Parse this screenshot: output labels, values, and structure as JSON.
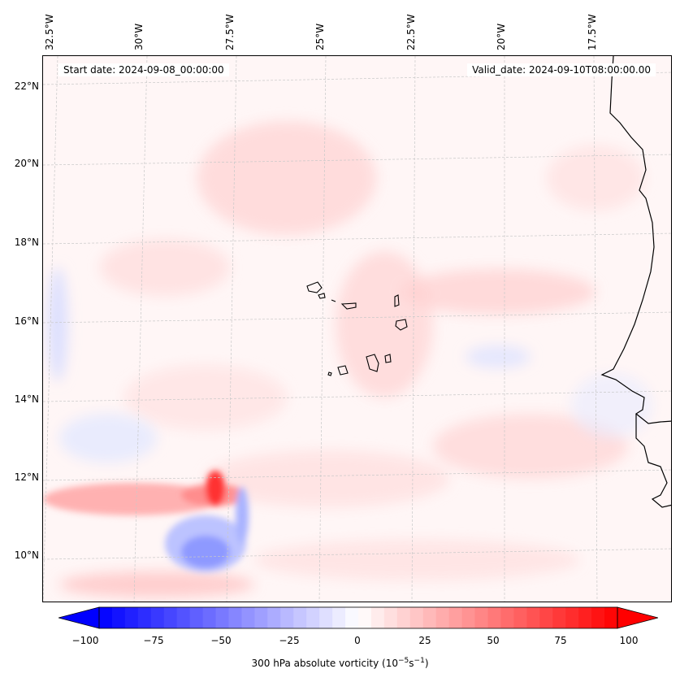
{
  "map": {
    "start_date": "Start date: 2024-09-08_00:00:00",
    "valid_date": "Valid_date: 2024-09-10T08:00:00.00",
    "lon_labels": [
      "32.5°W",
      "30°W",
      "27.5°W",
      "25°W",
      "22.5°W",
      "20°W",
      "17.5°W"
    ],
    "lat_labels": [
      "22°N",
      "20°N",
      "18°N",
      "16°N",
      "14°N",
      "12°N",
      "10°N"
    ],
    "colorbar": {
      "ticks": [
        "−100",
        "−75",
        "−50",
        "−25",
        "0",
        "25",
        "50",
        "75",
        "100"
      ],
      "title_prefix": "300 hPa absolute vorticity (10",
      "title_exp1": "−5",
      "title_mid": "s",
      "title_exp2": "−1",
      "title_suffix": ")",
      "min_color": "#0000ff",
      "mid_color": "#ffffff",
      "max_color": "#ff0000"
    }
  }
}
